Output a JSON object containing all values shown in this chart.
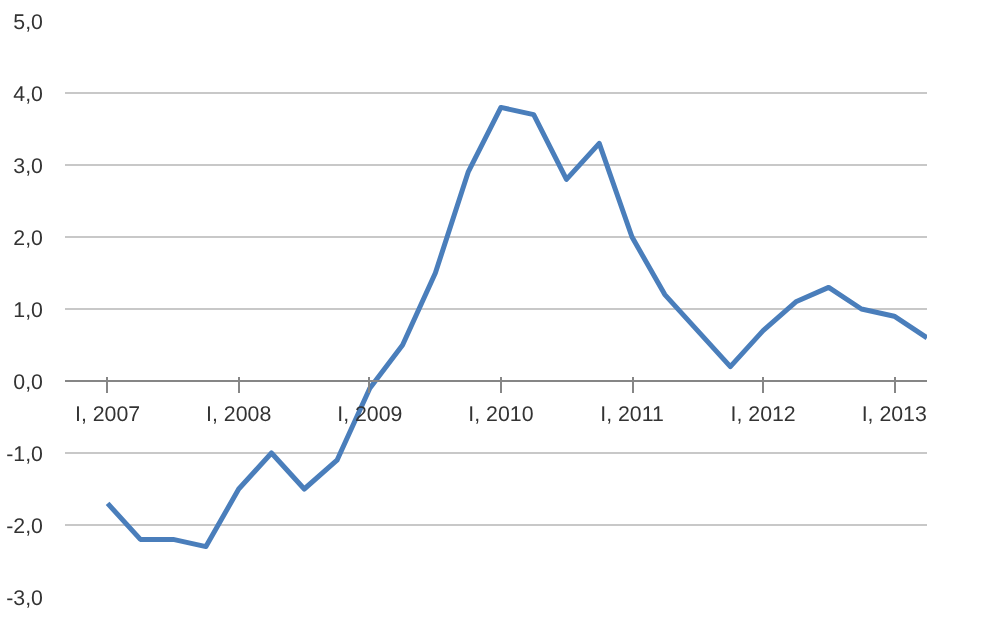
{
  "chart_data": {
    "type": "line",
    "categories": [
      "I, 2007",
      null,
      null,
      null,
      "I, 2008",
      null,
      null,
      null,
      "I, 2009",
      null,
      null,
      null,
      "I, 2010",
      null,
      null,
      null,
      "I, 2011",
      null,
      null,
      null,
      "I, 2012",
      null,
      null,
      null,
      "I, 2013",
      null
    ],
    "series": [
      {
        "color": "#4a7ebb",
        "values": [
          -1.7,
          -2.2,
          -2.2,
          -2.3,
          -1.5,
          -1.0,
          -1.5,
          -1.1,
          -0.1,
          0.5,
          1.5,
          2.9,
          3.8,
          3.7,
          2.8,
          3.3,
          2.0,
          1.2,
          0.7,
          0.2,
          0.7,
          1.1,
          1.3,
          1.0,
          0.9,
          0.6
        ]
      }
    ],
    "ylim": [
      -3,
      5
    ],
    "yticks": [
      {
        "value": -3,
        "label": "-3,0"
      },
      {
        "value": -2,
        "label": "-2,0"
      },
      {
        "value": -1,
        "label": "-1,0"
      },
      {
        "value": 0,
        "label": "0,0"
      },
      {
        "value": 1,
        "label": "1,0"
      },
      {
        "value": 2,
        "label": "2,0"
      },
      {
        "value": 3,
        "label": "3,0"
      },
      {
        "value": 4,
        "label": "4,0"
      },
      {
        "value": 5,
        "label": "5,0"
      }
    ],
    "grid": "y",
    "marker": "none",
    "line_style": "solid"
  }
}
